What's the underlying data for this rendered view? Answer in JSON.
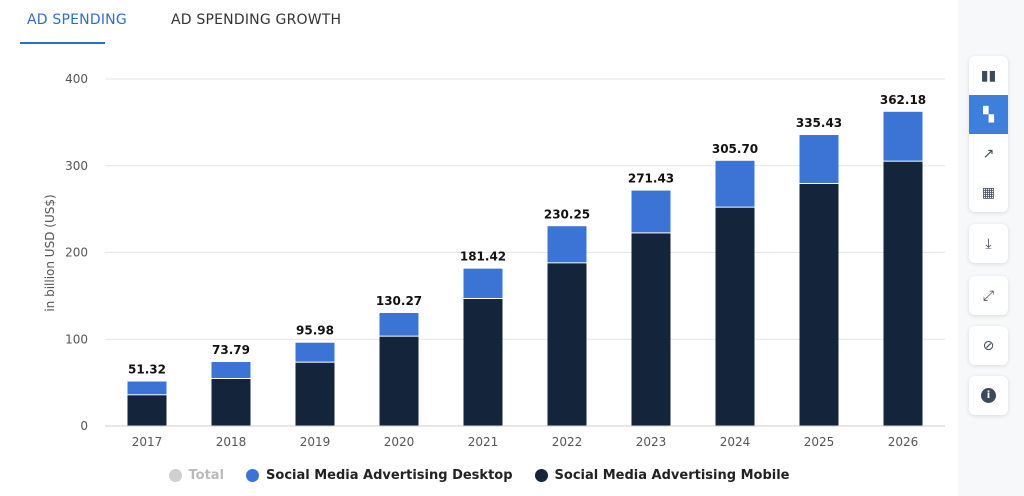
{
  "tabs": [
    {
      "label": "AD SPENDING",
      "active": true
    },
    {
      "label": "AD SPENDING GROWTH",
      "active": false
    }
  ],
  "toolbar": {
    "icons": [
      "bar-chart-icon",
      "stacked-bar-icon",
      "line-trend-icon",
      "table-icon",
      "download-icon",
      "expand-icon",
      "hide-icon",
      "info-icon"
    ],
    "active": "stacked-bar-icon"
  },
  "colors": {
    "desktop": "#3b74d4",
    "mobile": "#14243b",
    "total": "#cfcfcf",
    "accent": "#2d6ec9"
  },
  "chart_data": {
    "type": "bar",
    "stacked": true,
    "categories": [
      "2017",
      "2018",
      "2019",
      "2020",
      "2021",
      "2022",
      "2023",
      "2024",
      "2025",
      "2026"
    ],
    "series": [
      {
        "name": "Social Media Advertising Mobile",
        "values": [
          35.4,
          54.2,
          73.0,
          103.0,
          146.4,
          187.5,
          222.0,
          251.7,
          279.0,
          304.7
        ]
      },
      {
        "name": "Social Media Advertising Desktop",
        "values": [
          15.9,
          19.6,
          23.0,
          27.3,
          35.0,
          42.8,
          49.4,
          54.0,
          56.4,
          57.5
        ]
      }
    ],
    "totals": [
      "51.32",
      "73.79",
      "95.98",
      "130.27",
      "181.42",
      "230.25",
      "271.43",
      "305.70",
      "335.43",
      "362.18"
    ],
    "legend": [
      {
        "name": "Total",
        "disabled": true
      },
      {
        "name": "Social Media Advertising Desktop"
      },
      {
        "name": "Social Media Advertising Mobile"
      }
    ],
    "ylabel": "in billion USD (US$)",
    "ylim": [
      0,
      400
    ],
    "yticks": [
      "0",
      "100",
      "200",
      "300",
      "400"
    ],
    "grid": true,
    "legend_position": "bottom"
  }
}
